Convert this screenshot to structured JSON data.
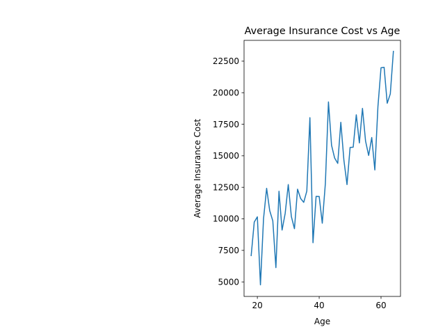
{
  "chart_data": {
    "type": "line",
    "title": "Average Insurance Cost vs Age",
    "xlabel": "Age",
    "ylabel": "Average Insurance Cost",
    "xlim": [
      15.7,
      66.3
    ],
    "ylim": [
      3850,
      24150
    ],
    "xticks": [
      20,
      40,
      60
    ],
    "yticks": [
      5000,
      7500,
      10000,
      12500,
      15000,
      17500,
      20000,
      22500
    ],
    "xtick_labels": [
      "20",
      "40",
      "60"
    ],
    "ytick_labels": [
      "5000",
      "7500",
      "10000",
      "12500",
      "15000",
      "17500",
      "20000",
      "22500"
    ],
    "grid": false,
    "series": [
      {
        "color": "#1f77b4",
        "x": [
          18,
          19,
          20,
          21,
          22,
          23,
          24,
          25,
          26,
          27,
          28,
          29,
          30,
          31,
          32,
          33,
          34,
          35,
          36,
          37,
          38,
          39,
          40,
          41,
          42,
          43,
          44,
          45,
          46,
          47,
          48,
          49,
          50,
          51,
          52,
          53,
          54,
          55,
          56,
          57,
          58,
          59,
          60,
          61,
          62,
          63,
          64
        ],
        "values": [
          7087,
          9748,
          10160,
          4767,
          10013,
          12420,
          10648,
          9838,
          6134,
          12184,
          9110,
          10431,
          12719,
          10184,
          9221,
          12352,
          11614,
          11308,
          12204,
          18020,
          8104,
          11780,
          11772,
          9654,
          12811,
          19268,
          15828,
          14819,
          14398,
          17654,
          14633,
          12719,
          15662,
          15682,
          18250,
          16020,
          18759,
          16164,
          15026,
          16447,
          13878,
          18896,
          21980,
          22011,
          19166,
          19906,
          23276
        ]
      }
    ]
  }
}
